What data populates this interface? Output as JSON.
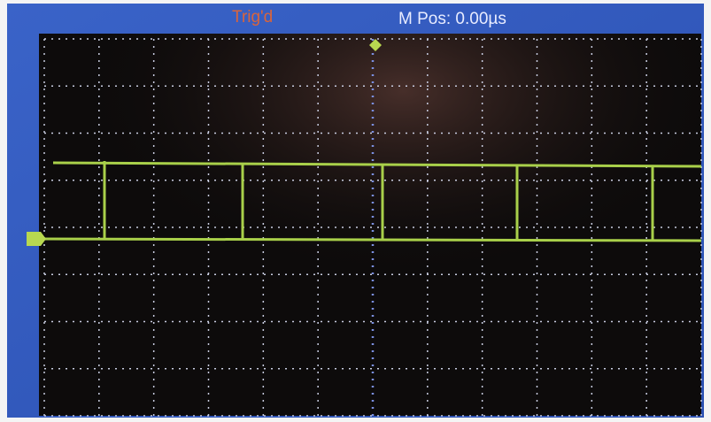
{
  "header": {
    "status": "Trig'd",
    "position": "M Pos: 0.00µs"
  }
}
